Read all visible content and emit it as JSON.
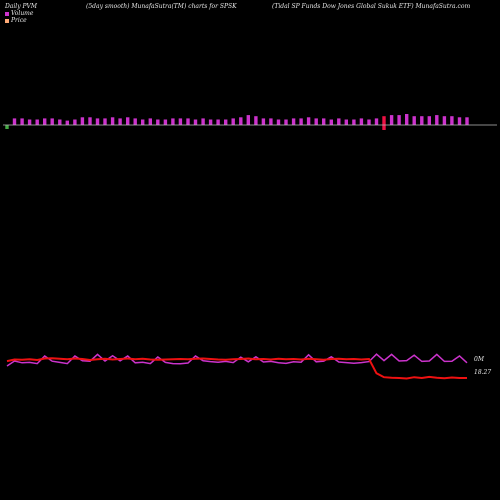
{
  "header": {
    "left": "Daily PVM",
    "center": "(5day smooth) MunafaSutra(TM) charts for SPSK",
    "right": "(Tidal SP Funds Dow  Jones Global Sukuk ETF) MunafaSutra.com"
  },
  "legend": [
    {
      "label": "Volume",
      "color": "#cc33cc"
    },
    {
      "label": "Price",
      "color": "#ffaa77"
    }
  ],
  "labels": {
    "volume_right": "0M",
    "price_right": "18.27"
  },
  "colors": {
    "bar": "#cc33cc",
    "bar_down": "#ee1144",
    "bar_low": "#44aa44",
    "volume_line": "#cc33cc",
    "price_line": "#ee1111",
    "baseline": "#bbbbbb"
  },
  "chart_data": {
    "type": "bar",
    "title": "(5day smooth) MunafaSutra(TM) charts for SPSK",
    "series": [
      {
        "name": "Volume",
        "values": [
          5,
          6,
          6,
          5,
          5,
          6,
          6,
          5,
          4,
          5,
          7,
          7,
          6,
          6,
          7,
          6,
          7,
          6,
          5,
          6,
          5,
          5,
          6,
          6,
          6,
          5,
          6,
          5,
          5,
          5,
          6,
          7,
          9,
          8,
          6,
          6,
          5,
          5,
          6,
          6,
          7,
          6,
          6,
          5,
          6,
          5,
          5,
          6,
          5,
          6,
          8,
          9,
          9,
          10,
          8,
          8,
          8,
          9,
          8,
          8,
          7,
          7
        ]
      },
      {
        "name": "Price",
        "values": [
          18.92,
          18.98,
          18.97,
          18.99,
          18.96,
          19.02,
          19.03,
          19.01,
          18.99,
          19.02,
          19.0,
          18.96,
          18.99,
          19.01,
          18.98,
          19.0,
          19.02,
          18.99,
          19.01,
          18.98,
          18.97,
          18.98,
          18.99,
          19.0,
          18.99,
          19.01,
          19.02,
          19.0,
          18.98,
          18.97,
          18.99,
          19.0,
          19.02,
          18.99,
          19.0,
          18.98,
          19.01,
          18.99,
          19.0,
          18.98,
          19.01,
          18.99,
          18.97,
          19.0,
          19.01,
          18.99,
          19.0,
          18.98,
          19.0,
          18.45,
          18.3,
          18.28,
          18.27,
          18.25,
          18.3,
          18.27,
          18.31,
          18.28,
          18.26,
          18.29,
          18.27,
          18.27
        ]
      }
    ],
    "bar_colors": [
      "low",
      "up",
      "up",
      "up",
      "up",
      "up",
      "up",
      "up",
      "up",
      "up",
      "up",
      "up",
      "up",
      "up",
      "up",
      "up",
      "up",
      "up",
      "up",
      "up",
      "up",
      "up",
      "up",
      "up",
      "up",
      "up",
      "up",
      "up",
      "up",
      "up",
      "up",
      "up",
      "up",
      "up",
      "up",
      "up",
      "up",
      "up",
      "up",
      "up",
      "up",
      "up",
      "up",
      "up",
      "up",
      "up",
      "up",
      "up",
      "up",
      "up",
      "down",
      "up",
      "up",
      "up",
      "up",
      "up",
      "up",
      "up",
      "up",
      "up",
      "up",
      "up"
    ],
    "volume_line": [
      6.0,
      8.5,
      7.6,
      7.8,
      7.2,
      8.0,
      8.4,
      7.8,
      7.2,
      8.0,
      8.6,
      8.4,
      8.8,
      8.5,
      8.1,
      8.6,
      8.0,
      7.6,
      7.9,
      7.2,
      7.5,
      7.8,
      7.2,
      7.1,
      7.5,
      8.0,
      8.6,
      8.2,
      7.9,
      8.3,
      7.7,
      7.4,
      8.1,
      7.6,
      8.0,
      8.3,
      7.6,
      7.3,
      8.1,
      7.9,
      8.6,
      8.1,
      8.4,
      7.6,
      8.0,
      7.7,
      7.4,
      7.7,
      8.2,
      8.9,
      8.7,
      8.8,
      8.5,
      8.7,
      8.4,
      8.3,
      8.5,
      8.8,
      8.3,
      8.4,
      8.0,
      7.6
    ],
    "volume_peaks": [
      5,
      9,
      12,
      14,
      16,
      20,
      25,
      31,
      33,
      40,
      43,
      49,
      51,
      54,
      57,
      60
    ],
    "ylim_volume": [
      0,
      12
    ],
    "ylim_price": [
      17.5,
      19.5
    ]
  }
}
